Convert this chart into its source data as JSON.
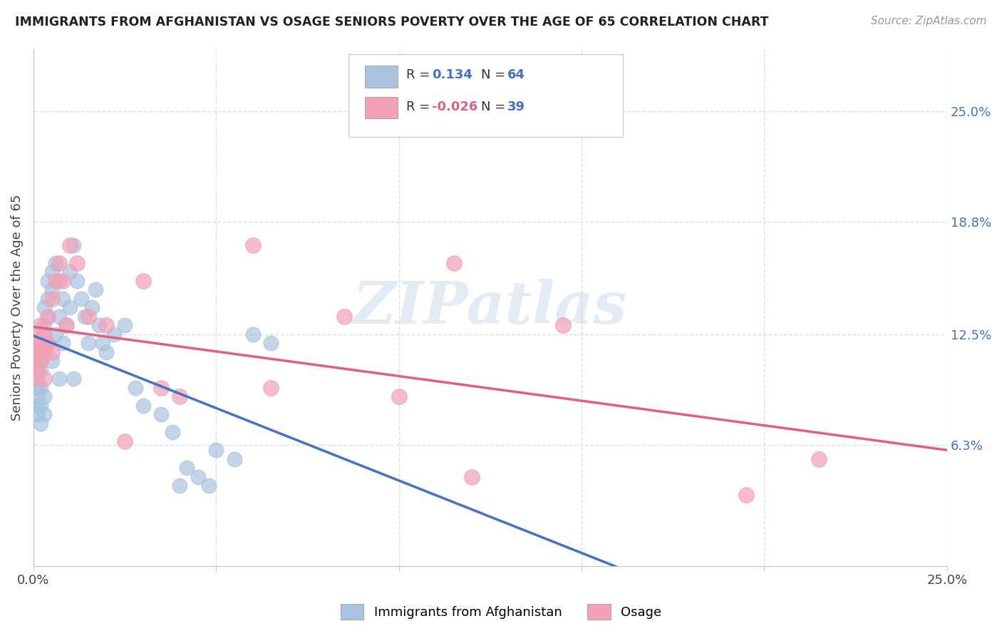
{
  "title": "IMMIGRANTS FROM AFGHANISTAN VS OSAGE SENIORS POVERTY OVER THE AGE OF 65 CORRELATION CHART",
  "source": "Source: ZipAtlas.com",
  "ylabel": "Seniors Poverty Over the Age of 65",
  "xlim": [
    0.0,
    0.25
  ],
  "ylim": [
    -0.005,
    0.285
  ],
  "color_blue": "#a8c4e0",
  "color_pink": "#f4a0b5",
  "color_blue_line": "#4472c4",
  "color_pink_line": "#e06080",
  "watermark": "ZIPatlas",
  "afghanistan_x": [
    0.0,
    0.0,
    0.001,
    0.001,
    0.001,
    0.001,
    0.001,
    0.001,
    0.001,
    0.002,
    0.002,
    0.002,
    0.002,
    0.002,
    0.002,
    0.002,
    0.003,
    0.003,
    0.003,
    0.003,
    0.003,
    0.003,
    0.004,
    0.004,
    0.004,
    0.004,
    0.005,
    0.005,
    0.005,
    0.006,
    0.006,
    0.007,
    0.007,
    0.007,
    0.008,
    0.008,
    0.009,
    0.01,
    0.01,
    0.011,
    0.011,
    0.012,
    0.013,
    0.014,
    0.015,
    0.016,
    0.017,
    0.018,
    0.019,
    0.02,
    0.022,
    0.025,
    0.028,
    0.03,
    0.035,
    0.038,
    0.04,
    0.042,
    0.045,
    0.048,
    0.05,
    0.055,
    0.06,
    0.065
  ],
  "afghanistan_y": [
    0.11,
    0.115,
    0.105,
    0.095,
    0.08,
    0.085,
    0.09,
    0.095,
    0.1,
    0.11,
    0.115,
    0.12,
    0.095,
    0.085,
    0.105,
    0.075,
    0.14,
    0.13,
    0.115,
    0.125,
    0.09,
    0.08,
    0.155,
    0.145,
    0.135,
    0.12,
    0.16,
    0.15,
    0.11,
    0.165,
    0.125,
    0.155,
    0.135,
    0.1,
    0.145,
    0.12,
    0.13,
    0.16,
    0.14,
    0.175,
    0.1,
    0.155,
    0.145,
    0.135,
    0.12,
    0.14,
    0.15,
    0.13,
    0.12,
    0.115,
    0.125,
    0.13,
    0.095,
    0.085,
    0.08,
    0.07,
    0.04,
    0.05,
    0.045,
    0.04,
    0.06,
    0.055,
    0.125,
    0.12
  ],
  "osage_x": [
    0.0,
    0.0,
    0.0,
    0.001,
    0.001,
    0.001,
    0.001,
    0.002,
    0.002,
    0.002,
    0.002,
    0.003,
    0.003,
    0.003,
    0.004,
    0.004,
    0.005,
    0.005,
    0.006,
    0.007,
    0.008,
    0.009,
    0.01,
    0.012,
    0.015,
    0.02,
    0.025,
    0.03,
    0.035,
    0.04,
    0.06,
    0.065,
    0.085,
    0.1,
    0.115,
    0.12,
    0.145,
    0.195,
    0.215
  ],
  "osage_y": [
    0.1,
    0.11,
    0.115,
    0.105,
    0.115,
    0.12,
    0.125,
    0.11,
    0.115,
    0.12,
    0.13,
    0.1,
    0.115,
    0.125,
    0.12,
    0.135,
    0.115,
    0.145,
    0.155,
    0.165,
    0.155,
    0.13,
    0.175,
    0.165,
    0.135,
    0.13,
    0.065,
    0.155,
    0.095,
    0.09,
    0.175,
    0.095,
    0.135,
    0.09,
    0.165,
    0.045,
    0.13,
    0.035,
    0.055
  ],
  "ytick_values": [
    0.063,
    0.125,
    0.188,
    0.25
  ],
  "ytick_labels": [
    "6.3%",
    "12.5%",
    "18.8%",
    "25.0%"
  ]
}
